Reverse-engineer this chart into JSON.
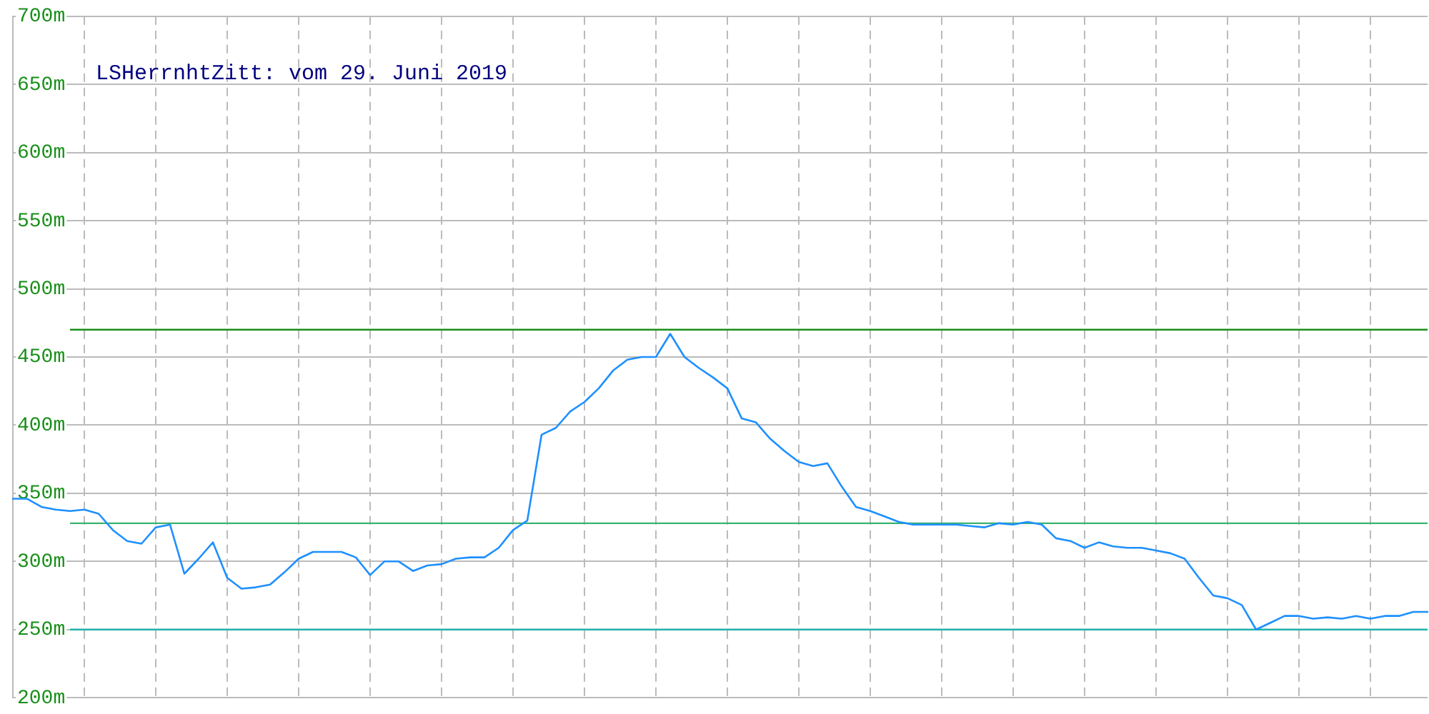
{
  "chart_data": {
    "type": "line",
    "title": "LSHerrnhtZitt: vom 29. Juni 2019",
    "categories": [
      null,
      null,
      null,
      null,
      null,
      null,
      null,
      null,
      null,
      null,
      null,
      null,
      null,
      null,
      null,
      null,
      null,
      null,
      null,
      null,
      null,
      null,
      null,
      null,
      null,
      null,
      null,
      null,
      null,
      null,
      null,
      null,
      null,
      null,
      null,
      null,
      null,
      null,
      null,
      null,
      null,
      null,
      null,
      null,
      null,
      null,
      null,
      null,
      null,
      null,
      null,
      null,
      null,
      null,
      null,
      null,
      null,
      null,
      null,
      null,
      null,
      null,
      null,
      null,
      null,
      null,
      null,
      null,
      null,
      null,
      null,
      null,
      null,
      null,
      null,
      null,
      null,
      null,
      null,
      null,
      null,
      null,
      null,
      null,
      null,
      null,
      null,
      null,
      null,
      null,
      null,
      null,
      null,
      null,
      null,
      null,
      null,
      null,
      null,
      null
    ],
    "series": [
      {
        "color": "#1e90ff",
        "values": [
          346,
          346,
          340,
          338,
          337,
          338,
          335,
          323,
          315,
          313,
          325,
          327,
          291,
          302,
          314,
          288,
          280,
          281,
          283,
          292,
          302,
          307,
          307,
          307,
          303,
          290,
          300,
          300,
          293,
          297,
          298,
          302,
          303,
          303,
          310,
          323,
          330,
          393,
          398,
          410,
          417,
          427,
          440,
          448,
          450,
          450,
          467,
          450,
          442,
          435,
          427,
          405,
          402,
          390,
          381,
          373,
          370,
          372,
          355,
          340,
          337,
          333,
          329,
          327,
          327,
          327,
          327,
          326,
          325,
          328,
          327,
          329,
          327,
          317,
          315,
          310,
          314,
          311,
          310,
          310,
          308,
          306,
          302,
          288,
          275,
          273,
          268,
          250,
          255,
          260,
          260,
          258,
          259,
          258,
          260,
          258,
          260,
          260,
          263,
          263
        ]
      }
    ],
    "ylim": [
      200,
      700
    ],
    "yticks": [
      {
        "value": 200,
        "label": "200m"
      },
      {
        "value": 250,
        "label": "250m"
      },
      {
        "value": 300,
        "label": "300m"
      },
      {
        "value": 350,
        "label": "350m"
      },
      {
        "value": 400,
        "label": "400m"
      },
      {
        "value": 450,
        "label": "450m"
      },
      {
        "value": 500,
        "label": "500m"
      },
      {
        "value": 550,
        "label": "550m"
      },
      {
        "value": 600,
        "label": "600m"
      },
      {
        "value": 650,
        "label": "650m"
      },
      {
        "value": 700,
        "label": "700m"
      }
    ],
    "tick_labels": "y",
    "grid": true,
    "legend": false,
    "marker": "none",
    "line_style": "solid",
    "ref_lines": [
      {
        "axis": "y",
        "value": 470,
        "color": "#1a8f1a"
      },
      {
        "axis": "y",
        "value": 328,
        "color": "#3cb371"
      },
      {
        "axis": "y",
        "value": 250,
        "color": "#20b2aa"
      }
    ]
  }
}
